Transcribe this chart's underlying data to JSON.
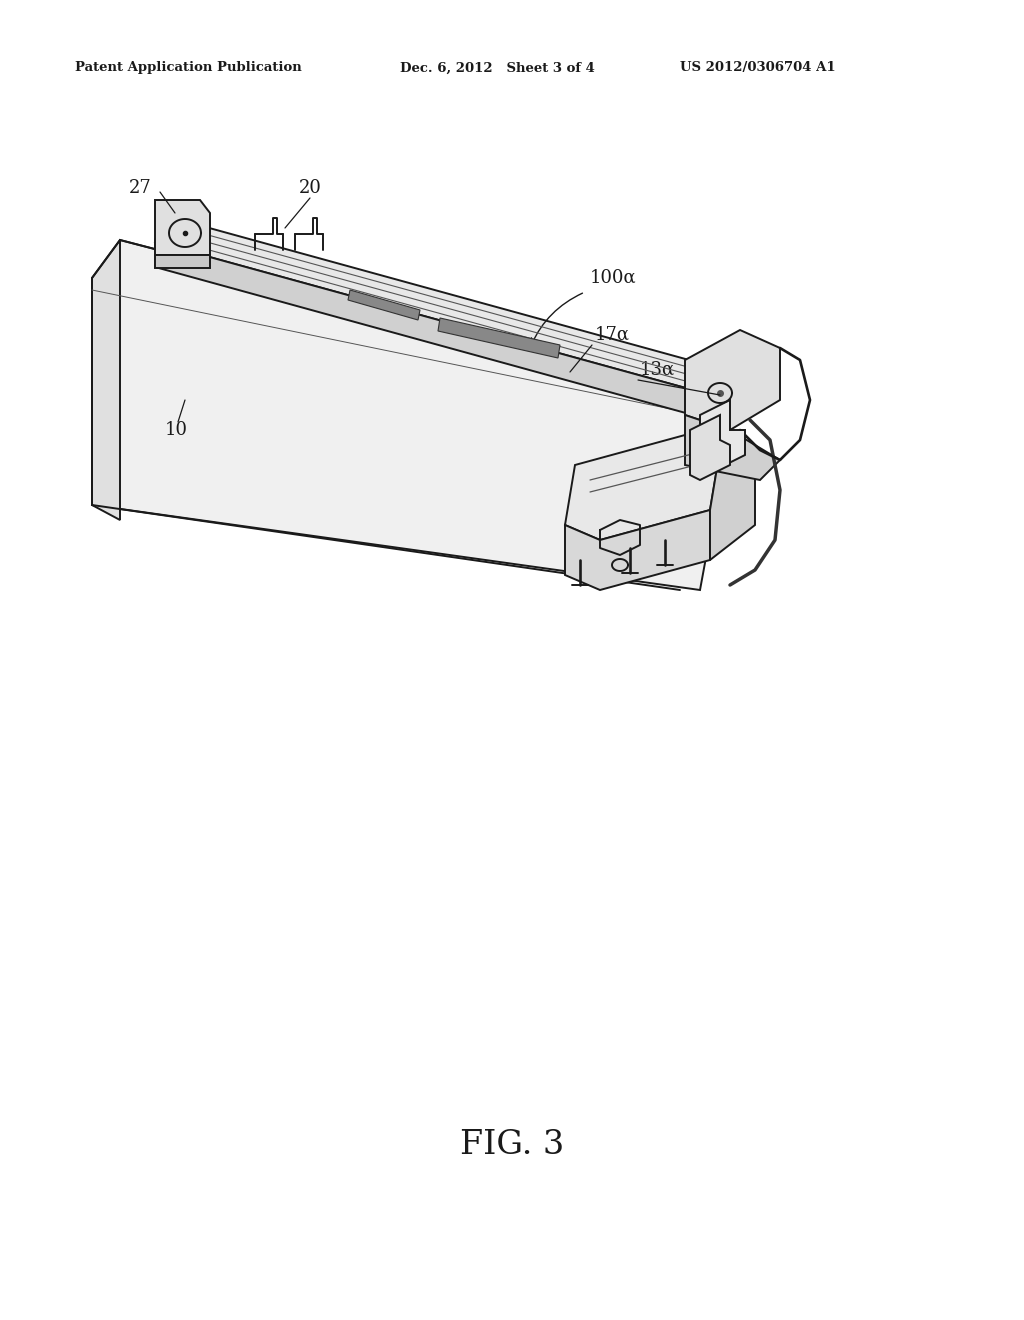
{
  "background_color": "#ffffff",
  "header_left": "Patent Application Publication",
  "header_mid": "Dec. 6, 2012   Sheet 3 of 4",
  "header_right": "US 2012/0306704 A1",
  "figure_label": "FIG. 3",
  "lc": "#1a1a1a",
  "lw_main": 1.4,
  "lw_thin": 0.8,
  "lw_thick": 2.0
}
